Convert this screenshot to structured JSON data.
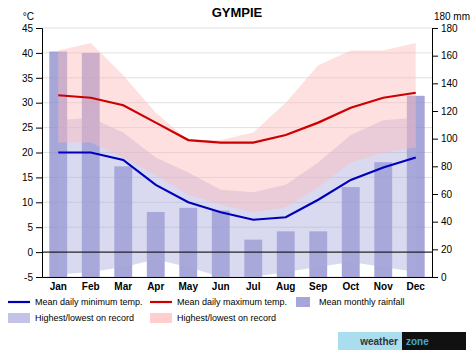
{
  "chart_data": {
    "type": "line",
    "title": "GYMPIE",
    "annotations": [
      "°C",
      "180 mm",
      "weather",
      "zone"
    ],
    "categories": [
      "Jan",
      "Feb",
      "Mar",
      "Apr",
      "May",
      "Jun",
      "Jul",
      "Aug",
      "Sep",
      "Oct",
      "Nov",
      "Dec"
    ],
    "series": [
      {
        "name": "Mean monthly rainfall",
        "type": "bar",
        "axis": "y2",
        "color": "#8888cc",
        "values": [
          163,
          162,
          80,
          47,
          50,
          48,
          27,
          33,
          33,
          65,
          83,
          131
        ]
      },
      {
        "name": "Highest/lowest on record",
        "type": "area",
        "color": "#aaaadd",
        "low": [
          -4.5,
          -4.0,
          -3.0,
          -1.5,
          -3.0,
          -5.0,
          -5.0,
          -4.0,
          -3.0,
          -2.0,
          -3.0,
          -4.0
        ],
        "high": [
          26.5,
          27.0,
          24.0,
          19.0,
          16.0,
          12.5,
          12.0,
          13.5,
          18.0,
          23.5,
          26.5,
          27.0
        ]
      },
      {
        "name": "Highest/lowest on record",
        "type": "area",
        "color": "#ffbbbb",
        "low": [
          22.0,
          22.0,
          19.0,
          15.5,
          11.5,
          9.5,
          8.0,
          9.0,
          13.0,
          18.0,
          20.0,
          21.0
        ],
        "high": [
          40.5,
          42.0,
          35.5,
          28.0,
          22.5,
          22.5,
          24.0,
          30.0,
          37.5,
          40.5,
          40.5,
          42.0
        ]
      },
      {
        "name": "Mean daily minimum temp.",
        "type": "line",
        "color": "#0000bb",
        "values": [
          20.0,
          20.0,
          18.5,
          13.5,
          10.0,
          8.0,
          6.5,
          7.0,
          10.5,
          14.5,
          17.0,
          19.0
        ]
      },
      {
        "name": "Mean daily maximum temp.",
        "type": "line",
        "color": "#cc0000",
        "values": [
          31.5,
          31.0,
          29.5,
          26.0,
          22.5,
          22.0,
          22.0,
          23.5,
          26.0,
          29.0,
          31.0,
          32.0
        ]
      }
    ],
    "ylim": [
      -5,
      45
    ],
    "yticks": [
      -5,
      0,
      5,
      10,
      15,
      20,
      25,
      30,
      35,
      40,
      45
    ],
    "y2lim": [
      0,
      180
    ],
    "y2ticks": [
      0,
      20,
      40,
      60,
      80,
      100,
      120,
      140,
      160,
      180
    ],
    "grid": true,
    "legend": "bottom"
  }
}
